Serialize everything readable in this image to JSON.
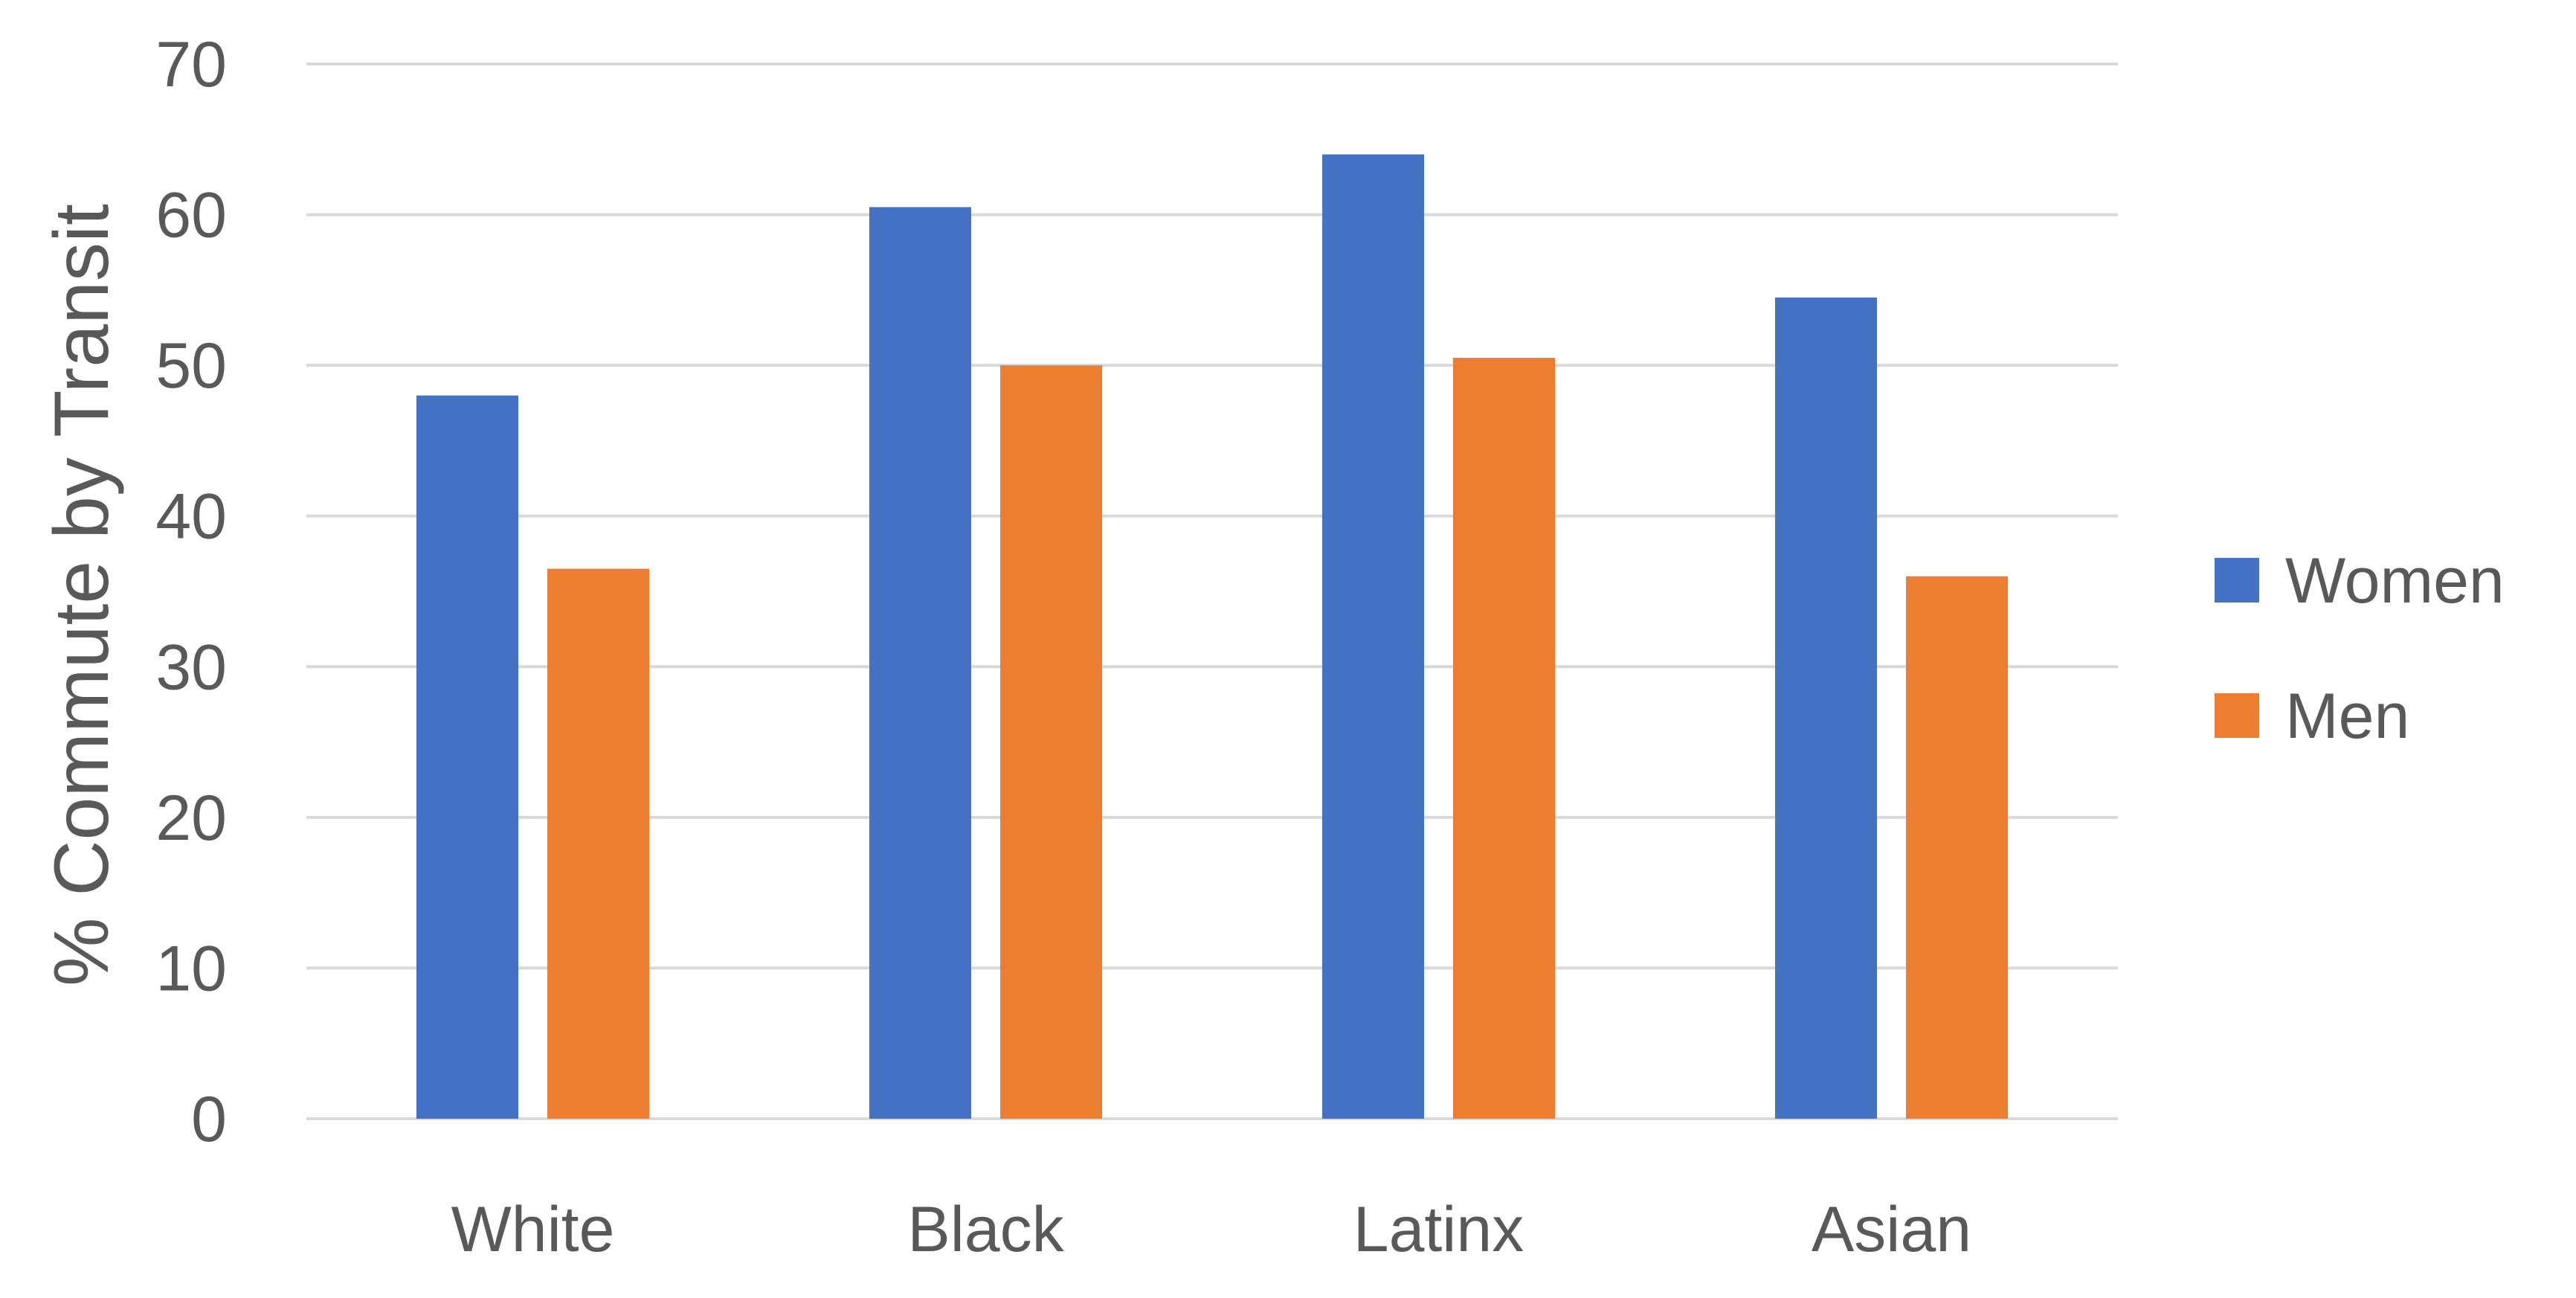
{
  "chart_data": {
    "type": "bar",
    "title": "",
    "xlabel": "",
    "ylabel": "% Commute by Transit",
    "categories": [
      "White",
      "Black",
      "Latinx",
      "Asian"
    ],
    "series": [
      {
        "name": "Women",
        "color": "#4472C4",
        "values": [
          48,
          60.5,
          64,
          54.5
        ]
      },
      {
        "name": "Men",
        "color": "#ED7D31",
        "values": [
          36.5,
          50,
          50.5,
          36
        ]
      }
    ],
    "ylim": [
      0,
      70
    ],
    "yticks": [
      0,
      10,
      20,
      30,
      40,
      50,
      60,
      70
    ],
    "grid": true,
    "gridline_color": "#D9D9D9",
    "legend_position": "right"
  }
}
